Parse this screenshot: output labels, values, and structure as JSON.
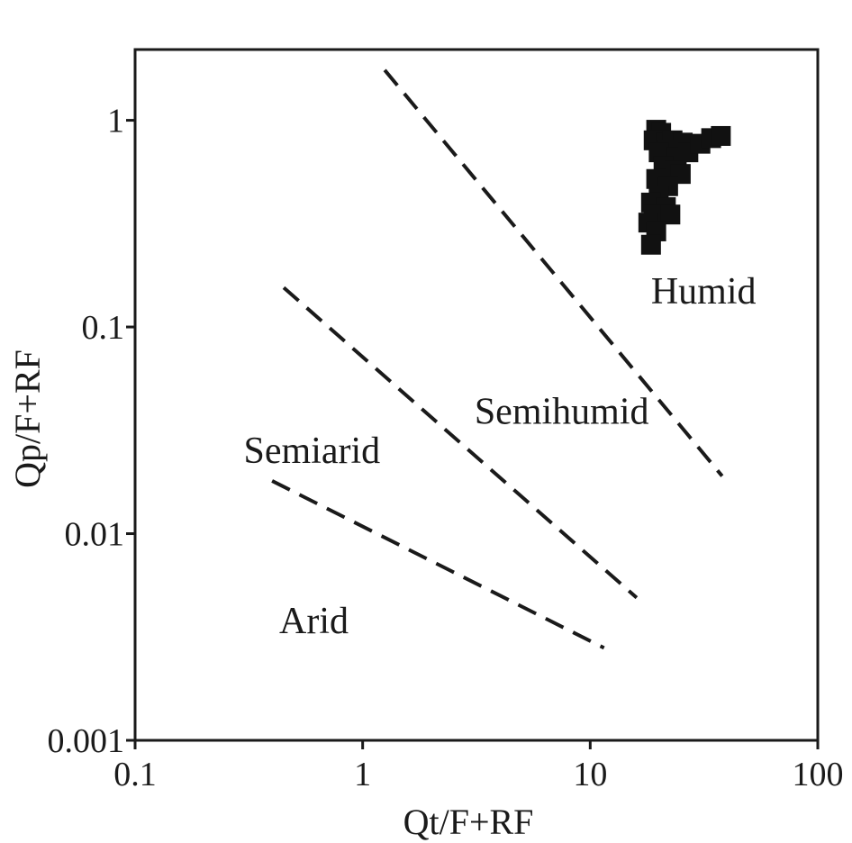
{
  "chart_data": {
    "type": "scatter",
    "xlabel": "Qt/F+RF",
    "ylabel": "Qp/F+RF",
    "xscale": "log",
    "yscale": "log",
    "xlim": [
      0.1,
      100
    ],
    "ylim": [
      0.001,
      2.2
    ],
    "grid": false,
    "x_ticks": [
      {
        "value": 0.1,
        "label": "0.1"
      },
      {
        "value": 1,
        "label": "1"
      },
      {
        "value": 10,
        "label": "10"
      },
      {
        "value": 100,
        "label": "100"
      }
    ],
    "y_ticks": [
      {
        "value": 0.001,
        "label": "0.001"
      },
      {
        "value": 0.01,
        "label": "0.01"
      },
      {
        "value": 0.1,
        "label": "0.1"
      },
      {
        "value": 1,
        "label": "1"
      }
    ],
    "boundaries": [
      {
        "x": [
          1.25,
          38
        ],
        "y": [
          1.75,
          0.019
        ]
      },
      {
        "x": [
          0.45,
          16
        ],
        "y": [
          0.155,
          0.0049
        ]
      },
      {
        "x": [
          0.4,
          11.5
        ],
        "y": [
          0.018,
          0.0028
        ]
      }
    ],
    "region_labels": [
      {
        "text": "Humid",
        "x": 18.5,
        "y": 0.13
      },
      {
        "text": "Semihumid",
        "x": 3.1,
        "y": 0.034
      },
      {
        "text": "Semiarid",
        "x": 0.3,
        "y": 0.022
      },
      {
        "text": "Arid",
        "x": 0.43,
        "y": 0.0033
      }
    ],
    "series": [
      {
        "marker": "square",
        "color": "#111111",
        "points": [
          {
            "x": 19.5,
            "y": 0.9
          },
          {
            "x": 20.5,
            "y": 0.87
          },
          {
            "x": 19.0,
            "y": 0.8
          },
          {
            "x": 21.5,
            "y": 0.78
          },
          {
            "x": 23.0,
            "y": 0.8
          },
          {
            "x": 25.5,
            "y": 0.78
          },
          {
            "x": 22.0,
            "y": 0.72
          },
          {
            "x": 20.0,
            "y": 0.7
          },
          {
            "x": 24.0,
            "y": 0.66
          },
          {
            "x": 27.0,
            "y": 0.7
          },
          {
            "x": 30.5,
            "y": 0.77
          },
          {
            "x": 34.0,
            "y": 0.82
          },
          {
            "x": 37.5,
            "y": 0.84
          },
          {
            "x": 21.0,
            "y": 0.6
          },
          {
            "x": 23.5,
            "y": 0.57
          },
          {
            "x": 25.0,
            "y": 0.55
          },
          {
            "x": 19.5,
            "y": 0.52
          },
          {
            "x": 22.0,
            "y": 0.48
          },
          {
            "x": 20.0,
            "y": 0.43
          },
          {
            "x": 18.5,
            "y": 0.4
          },
          {
            "x": 21.5,
            "y": 0.38
          },
          {
            "x": 19.0,
            "y": 0.35
          },
          {
            "x": 22.5,
            "y": 0.35
          },
          {
            "x": 18.0,
            "y": 0.32
          },
          {
            "x": 19.5,
            "y": 0.29
          },
          {
            "x": 18.5,
            "y": 0.25
          }
        ]
      }
    ]
  }
}
